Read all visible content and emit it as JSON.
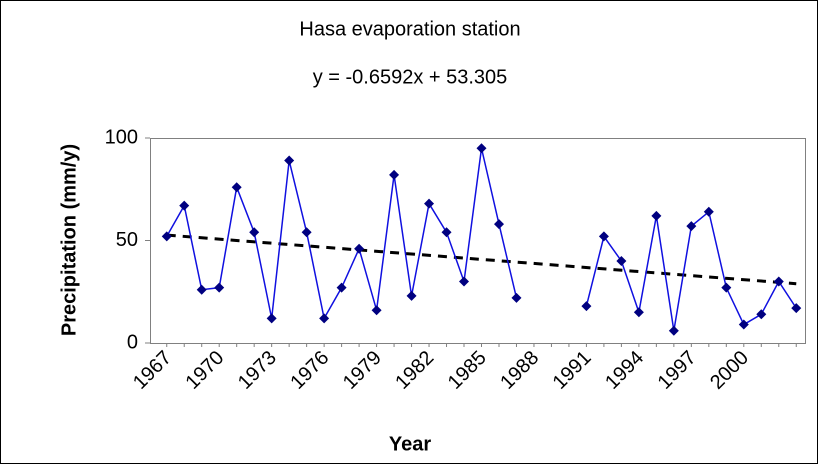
{
  "chart_data": {
    "type": "line",
    "title": "Hasa evaporation station",
    "trendline": {
      "label": "y = -0.6592x + 53.305",
      "slope": -0.6592,
      "intercept": 53.305
    },
    "x_label": "Year",
    "y_label": "Precipitation (mm/y)",
    "categories": [
      "1967",
      null,
      null,
      "1970",
      null,
      null,
      "1973",
      null,
      null,
      "1976",
      null,
      null,
      "1979",
      null,
      null,
      "1982",
      null,
      null,
      "1985",
      null,
      null,
      "1988",
      null,
      null,
      "1991",
      null,
      null,
      "1994",
      null,
      null,
      "1997",
      null,
      null,
      "2000",
      null,
      null,
      null
    ],
    "series": [
      {
        "name": "Precipitation",
        "color": "#1010e0",
        "marker_color": "#000080",
        "values": [
          52,
          67,
          26,
          27,
          76,
          54,
          12,
          89,
          54,
          12,
          27,
          46,
          16,
          82,
          23,
          68,
          54,
          30,
          95,
          58,
          22,
          null,
          null,
          null,
          18,
          52,
          40,
          15,
          62,
          6,
          57,
          64,
          27,
          9,
          14,
          30,
          17
        ]
      }
    ],
    "ylim": [
      0,
      100
    ],
    "yticks": [
      0,
      50,
      100
    ],
    "grid": false
  }
}
